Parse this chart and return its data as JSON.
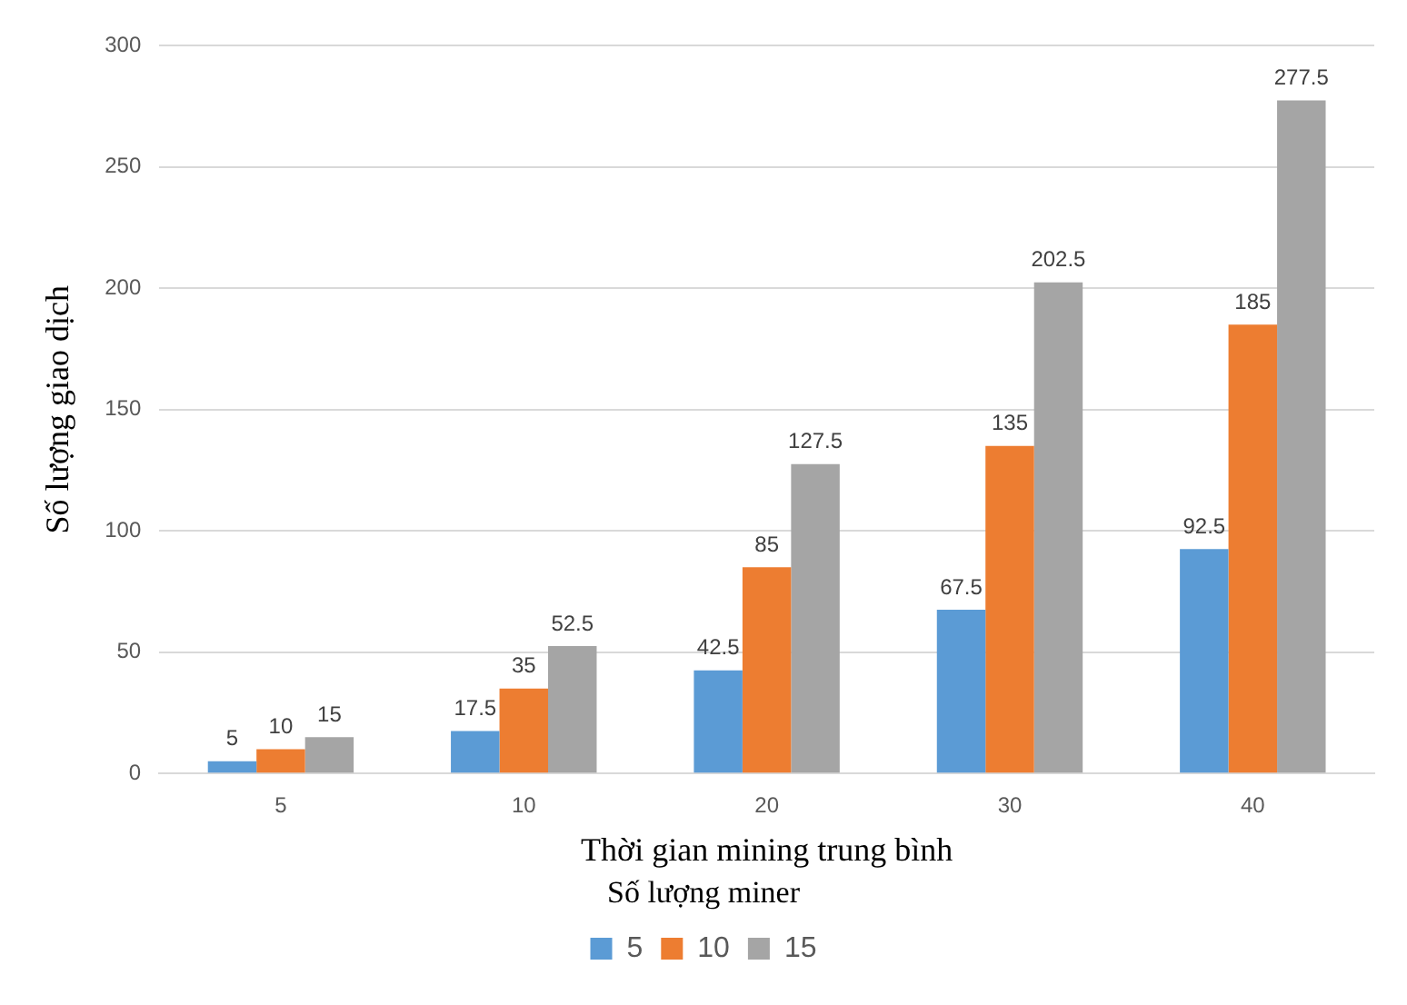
{
  "chart_data": {
    "type": "bar",
    "xlabel": "Thời gian mining trung bình",
    "ylabel": "Số lượng giao dịch",
    "legend_title": "Số lượng miner",
    "categories": [
      "5",
      "10",
      "20",
      "30",
      "40"
    ],
    "series": [
      {
        "name": "5",
        "color": "#5b9bd5",
        "values": [
          5,
          17.5,
          42.5,
          67.5,
          92.5
        ]
      },
      {
        "name": "10",
        "color": "#ed7d31",
        "values": [
          10,
          35,
          85,
          135,
          185
        ]
      },
      {
        "name": "15",
        "color": "#a5a5a5",
        "values": [
          15,
          52.5,
          127.5,
          202.5,
          277.5
        ]
      }
    ],
    "ylim": [
      0,
      300
    ],
    "yticks": [
      0,
      50,
      100,
      150,
      200,
      250,
      300
    ],
    "grid": "y",
    "legend": "bottom",
    "data_labels": true
  }
}
